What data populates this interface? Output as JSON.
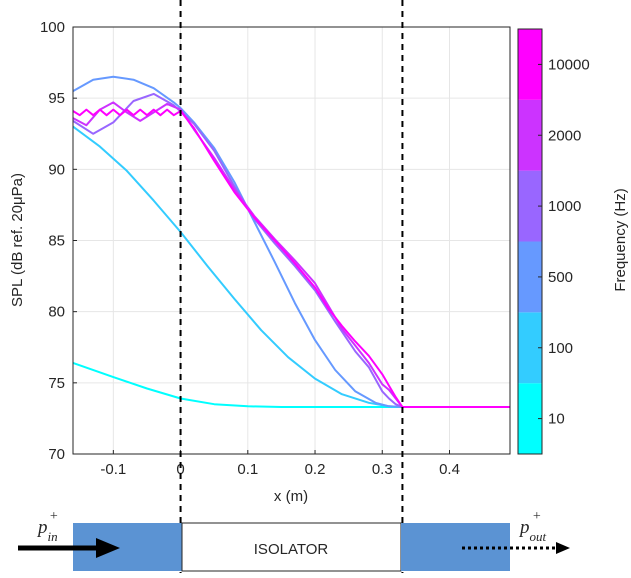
{
  "chart_data": {
    "type": "line",
    "xlabel": "x (m)",
    "ylabel": "SPL (dB ref. 20μPa)",
    "xlim": [
      -0.16,
      0.49
    ],
    "ylim": [
      70,
      100
    ],
    "x_ticks": [
      -0.1,
      0,
      0.1,
      0.2,
      0.3,
      0.4
    ],
    "x_tick_labels": [
      "-0.1",
      "0",
      "0.1",
      "0.2",
      "0.3",
      "0.4"
    ],
    "y_ticks": [
      70,
      75,
      80,
      85,
      90,
      95,
      100
    ],
    "y_tick_labels": [
      "70",
      "75",
      "80",
      "85",
      "90",
      "95",
      "100"
    ],
    "grid": true,
    "vlines": [
      0,
      0.33
    ],
    "colorbar": {
      "label": "Frequency (Hz)",
      "tick_labels": [
        "10",
        "100",
        "500",
        "1000",
        "2000",
        "10000"
      ],
      "colors": [
        "#00ffff",
        "#33ccff",
        "#6699ff",
        "#9966ff",
        "#cc33ff",
        "#ff00ff"
      ]
    },
    "series": [
      {
        "color": "#00ffff",
        "x": [
          -0.16,
          -0.1,
          -0.05,
          0,
          0.05,
          0.1,
          0.15,
          0.2,
          0.25,
          0.3,
          0.33,
          0.49
        ],
        "y": [
          76.4,
          75.4,
          74.6,
          73.9,
          73.5,
          73.35,
          73.3,
          73.3,
          73.3,
          73.3,
          73.3,
          73.3
        ]
      },
      {
        "color": "#33ccff",
        "x": [
          -0.16,
          -0.12,
          -0.08,
          -0.04,
          0,
          0.04,
          0.08,
          0.12,
          0.16,
          0.2,
          0.24,
          0.28,
          0.31,
          0.33,
          0.49
        ],
        "y": [
          93.0,
          91.6,
          89.9,
          87.8,
          85.6,
          83.2,
          80.9,
          78.7,
          76.8,
          75.3,
          74.2,
          73.6,
          73.35,
          73.3,
          73.3
        ]
      },
      {
        "color": "#6699ff",
        "x": [
          -0.16,
          -0.13,
          -0.1,
          -0.07,
          -0.04,
          -0.01,
          0,
          0.02,
          0.05,
          0.08,
          0.11,
          0.14,
          0.17,
          0.2,
          0.23,
          0.26,
          0.29,
          0.31,
          0.33,
          0.49
        ],
        "y": [
          95.5,
          96.3,
          96.5,
          96.3,
          95.7,
          94.7,
          94.3,
          93.3,
          91.5,
          89.1,
          86.3,
          83.5,
          80.6,
          78.0,
          75.9,
          74.4,
          73.6,
          73.35,
          73.3,
          73.3
        ]
      },
      {
        "color": "#9966ff",
        "x": [
          -0.16,
          -0.13,
          -0.1,
          -0.07,
          -0.04,
          -0.01,
          0.02,
          0.05,
          0.08,
          0.11,
          0.14,
          0.17,
          0.2,
          0.23,
          0.26,
          0.28,
          0.3,
          0.31,
          0.32,
          0.33,
          0.49
        ],
        "y": [
          93.4,
          92.5,
          93.3,
          94.8,
          95.3,
          94.5,
          93.2,
          91.3,
          88.8,
          86.5,
          84.8,
          83.2,
          81.5,
          79.3,
          77.2,
          76.1,
          74.4,
          73.9,
          73.5,
          73.3,
          73.3
        ]
      },
      {
        "color": "#cc33ff",
        "x": [
          -0.16,
          -0.14,
          -0.12,
          -0.1,
          -0.08,
          -0.06,
          -0.04,
          -0.02,
          0,
          0.02,
          0.05,
          0.08,
          0.11,
          0.14,
          0.17,
          0.2,
          0.22,
          0.24,
          0.26,
          0.28,
          0.3,
          0.31,
          0.32,
          0.33,
          0.49
        ],
        "y": [
          93.6,
          93.1,
          94.2,
          94.7,
          94.0,
          93.4,
          94.0,
          94.6,
          94.2,
          92.8,
          90.8,
          88.6,
          86.7,
          85.1,
          83.6,
          82.0,
          80.4,
          78.8,
          77.6,
          76.4,
          74.9,
          74.5,
          73.9,
          73.3,
          73.3
        ]
      },
      {
        "color": "#ff00ff",
        "x": [
          -0.16,
          -0.15,
          -0.14,
          -0.13,
          -0.12,
          -0.11,
          -0.1,
          -0.09,
          -0.08,
          -0.07,
          -0.06,
          -0.05,
          -0.04,
          -0.03,
          -0.02,
          -0.01,
          0,
          0.02,
          0.05,
          0.08,
          0.11,
          0.14,
          0.17,
          0.2,
          0.22,
          0.24,
          0.26,
          0.28,
          0.3,
          0.31,
          0.32,
          0.33,
          0.49
        ],
        "y": [
          94.1,
          93.8,
          94.2,
          93.8,
          94.2,
          93.8,
          94.2,
          93.8,
          94.2,
          93.8,
          94.2,
          93.8,
          94.2,
          93.8,
          94.2,
          93.8,
          94.1,
          92.9,
          90.6,
          88.4,
          86.6,
          85.0,
          83.4,
          81.7,
          80.2,
          79.0,
          77.9,
          76.9,
          75.6,
          74.8,
          74.0,
          73.3,
          73.3
        ]
      }
    ]
  },
  "diagram": {
    "inlet_label": "p",
    "inlet_sup": "+",
    "inlet_sub": "in",
    "outlet_label": "p",
    "outlet_sup": "+",
    "outlet_sub": "out",
    "isolator_label": "ISOLATOR",
    "duct_color": "#5b93d3"
  }
}
